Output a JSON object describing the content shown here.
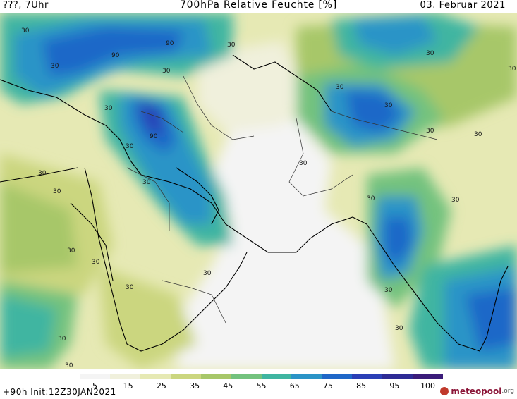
{
  "header": {
    "left_text": "???, 7Uhr",
    "title": "700hPa Relative Feuchte [%]",
    "date": "03. Februar 2021"
  },
  "footer": {
    "run_info": "+90h  Init:12Z30JAN2021",
    "logo_main": "meteopool",
    "logo_suffix": ".org"
  },
  "colorbar": {
    "tick_labels": [
      "5",
      "15",
      "25",
      "35",
      "45",
      "55",
      "65",
      "75",
      "85",
      "95",
      "100"
    ],
    "colors": [
      "#f4f4f4",
      "#f0f0dc",
      "#e6e9b4",
      "#cbd67f",
      "#a7c769",
      "#73c27e",
      "#3fb5a1",
      "#2b94c7",
      "#1f67c8",
      "#2b3fb6",
      "#2e2b95",
      "#3b1c7a"
    ]
  },
  "map": {
    "contour_labels": [
      "30",
      "90",
      "90",
      "30",
      "30",
      "30",
      "30",
      "90",
      "30",
      "30",
      "30",
      "30",
      "30",
      "30",
      "30",
      "30",
      "30",
      "30",
      "30",
      "30",
      "30",
      "30",
      "30",
      "30",
      "30",
      "30",
      "30",
      "30",
      "30"
    ]
  }
}
